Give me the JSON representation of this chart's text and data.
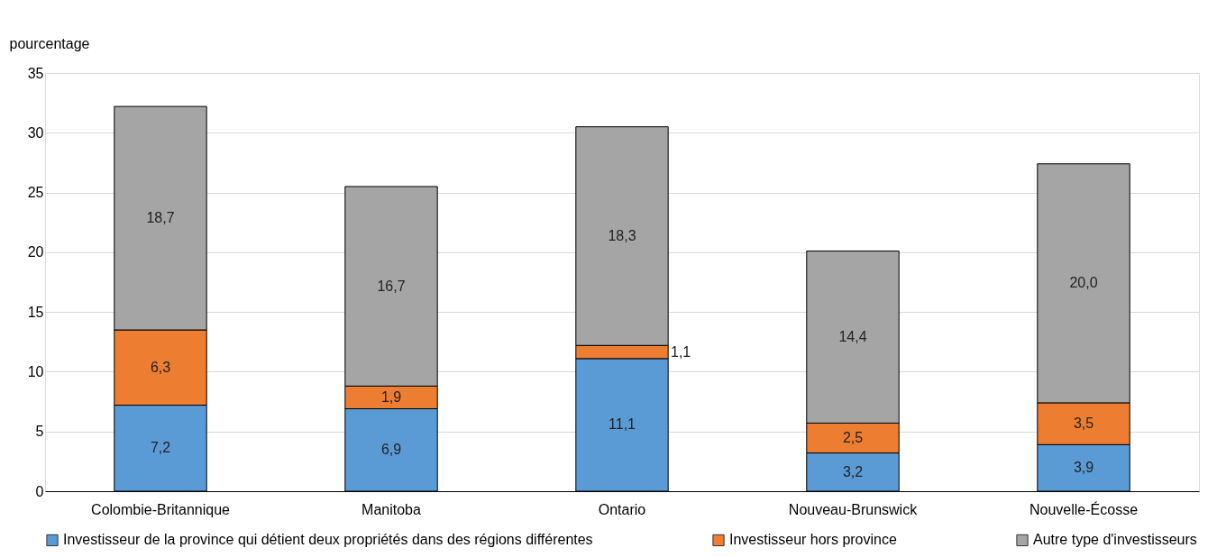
{
  "chart_data": {
    "type": "bar",
    "stacked": true,
    "ylabel": "pourcentage",
    "categories": [
      "Colombie-Britannique",
      "Manitoba",
      "Ontario",
      "Nouveau-Brunswick",
      "Nouvelle-Écosse"
    ],
    "series": [
      {
        "name": "Investisseur de la province qui détient deux propriétés dans des régions différentes",
        "color": "#5b9bd5",
        "values": [
          7.2,
          6.9,
          11.1,
          3.2,
          3.9
        ],
        "value_labels": [
          "7,2",
          "6,9",
          "11,1",
          "3,2",
          "3,9"
        ]
      },
      {
        "name": "Investisseur hors province",
        "color": "#ed7d31",
        "values": [
          6.3,
          1.9,
          1.1,
          2.5,
          3.5
        ],
        "value_labels": [
          "6,3",
          "1,9",
          "1,1",
          "2,5",
          "3,5"
        ]
      },
      {
        "name": "Autre type d'investisseurs",
        "color": "#a5a5a5",
        "values": [
          18.7,
          16.7,
          18.3,
          14.4,
          20.0
        ],
        "value_labels": [
          "18,7",
          "16,7",
          "18,3",
          "14,4",
          "20,0"
        ]
      }
    ],
    "ylim": [
      0,
      35
    ],
    "yticks": [
      0,
      5,
      10,
      15,
      20,
      25,
      30,
      35
    ],
    "grid": "y",
    "legend": "bottom"
  }
}
